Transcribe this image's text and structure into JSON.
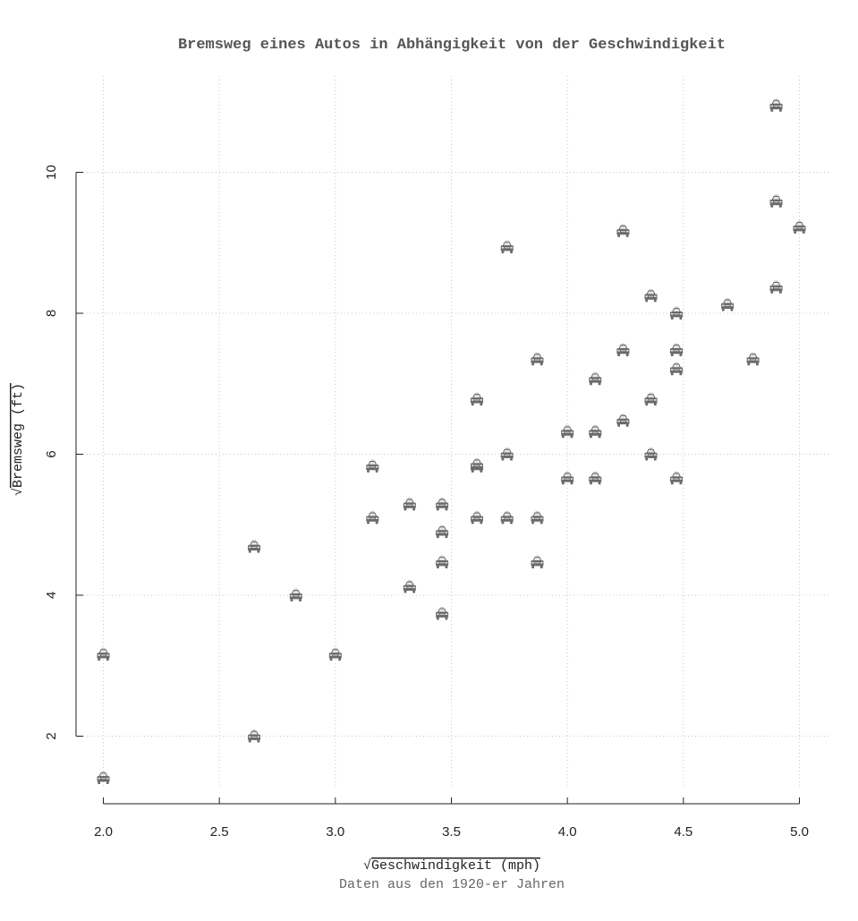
{
  "chart_data": {
    "type": "scatter",
    "title": "Bremsweg eines Autos in Abhängigkeit von der Geschwindigkeit",
    "xlabel": "Geschwindigkeit (mph)",
    "xlabel_root": "√",
    "ylabel": "Bremsweg (ft)",
    "ylabel_root": "√",
    "caption": "Daten aus den 1920-er Jahren",
    "marker_icon": "car-icon",
    "xlim": [
      2.0,
      5.0
    ],
    "ylim": [
      1.0,
      11.4
    ],
    "x_ticks": [
      "2.0",
      "2.5",
      "3.0",
      "3.5",
      "4.0",
      "4.5",
      "5.0"
    ],
    "y_ticks": [
      "2",
      "4",
      "6",
      "8",
      "10"
    ],
    "grid": true,
    "points": [
      [
        2.0,
        1.41
      ],
      [
        2.0,
        3.16
      ],
      [
        2.65,
        2.0
      ],
      [
        2.65,
        4.69
      ],
      [
        2.83,
        4.0
      ],
      [
        3.0,
        3.16
      ],
      [
        3.16,
        5.1
      ],
      [
        3.16,
        5.83
      ],
      [
        3.32,
        4.12
      ],
      [
        3.32,
        5.29
      ],
      [
        3.46,
        3.74
      ],
      [
        3.46,
        4.47
      ],
      [
        3.46,
        4.9
      ],
      [
        3.46,
        5.29
      ],
      [
        3.61,
        5.1
      ],
      [
        3.61,
        5.83
      ],
      [
        3.61,
        5.85
      ],
      [
        3.61,
        6.78
      ],
      [
        3.74,
        5.1
      ],
      [
        3.74,
        6.0
      ],
      [
        3.74,
        8.94
      ],
      [
        3.87,
        4.47
      ],
      [
        3.87,
        5.1
      ],
      [
        3.87,
        7.35
      ],
      [
        4.0,
        5.66
      ],
      [
        4.0,
        6.32
      ],
      [
        4.12,
        5.66
      ],
      [
        4.12,
        6.32
      ],
      [
        4.12,
        7.07
      ],
      [
        4.24,
        6.48
      ],
      [
        4.24,
        7.48
      ],
      [
        4.24,
        9.17
      ],
      [
        4.36,
        6.0
      ],
      [
        4.36,
        6.78
      ],
      [
        4.36,
        8.25
      ],
      [
        4.47,
        5.66
      ],
      [
        4.47,
        7.21
      ],
      [
        4.47,
        7.48
      ],
      [
        4.47,
        8.0
      ],
      [
        4.69,
        8.12
      ],
      [
        4.8,
        7.35
      ],
      [
        4.9,
        8.37
      ],
      [
        4.9,
        9.59
      ],
      [
        4.9,
        10.95
      ],
      [
        5.0,
        9.22
      ]
    ]
  },
  "colors": {
    "marker_body": "#6a6a6a",
    "marker_window": "#e6e6e6",
    "marker_light": "#cfcfcf"
  }
}
